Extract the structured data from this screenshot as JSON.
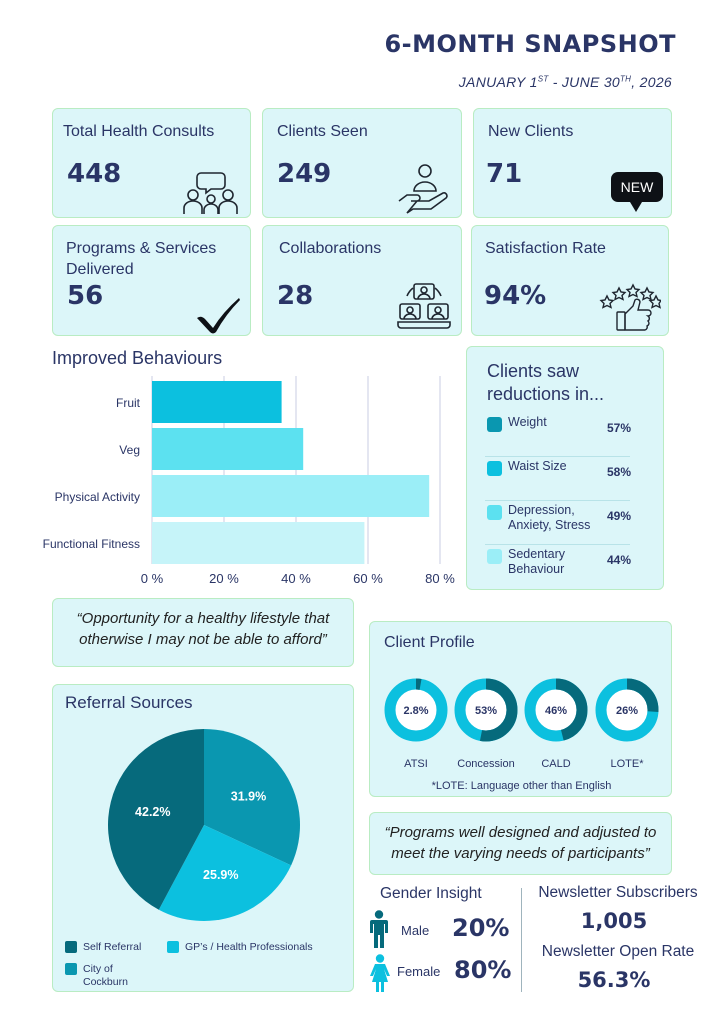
{
  "header": {
    "title": "6-MONTH SNAPSHOT",
    "date_a": "JANUARY 1",
    "date_a_sup": "ST",
    "date_b": " - JUNE 30",
    "date_b_sup": "TH",
    "date_c": ", 2026"
  },
  "stats": [
    {
      "label": "Total Health Consults",
      "value": "448",
      "icon": "consult-people-icon"
    },
    {
      "label": "Clients Seen",
      "value": "249",
      "icon": "hand-person-icon"
    },
    {
      "label": "New Clients",
      "value": "71",
      "icon": "new-badge-icon",
      "badge": "NEW"
    },
    {
      "label": "Programs & Services Delivered",
      "value": "56",
      "icon": "checkmark-icon"
    },
    {
      "label": "Collaborations",
      "value": "28",
      "icon": "video-call-icon"
    },
    {
      "label": "Satisfaction Rate",
      "value": "94%",
      "icon": "thumbs-up-stars-icon"
    }
  ],
  "improved": {
    "title": "Improved Behaviours"
  },
  "chart_data": {
    "type": "bar",
    "orientation": "horizontal",
    "title": "Improved Behaviours",
    "categories": [
      "Fruit",
      "Veg",
      "Physical Activity",
      "Functional Fitness"
    ],
    "values": [
      36,
      42,
      77,
      59
    ],
    "xlim": [
      0,
      80
    ],
    "xticks": [
      "0 %",
      "20 %",
      "40 %",
      "60 %",
      "80 %"
    ],
    "grid": true,
    "colors": [
      "#0cc0df",
      "#5ce1f0",
      "#9beef7",
      "#c6f4f9"
    ]
  },
  "reductions": {
    "title": "Clients saw reductions in...",
    "items": [
      {
        "label": "Weight",
        "value": "57%",
        "color": "#0a97b0"
      },
      {
        "label": "Waist Size",
        "value": "58%",
        "color": "#0cc0df"
      },
      {
        "label": "Depression, Anxiety, Stress",
        "value": "49%",
        "color": "#5ce1f0"
      },
      {
        "label": "Sedentary Behaviour",
        "value": "44%",
        "color": "#9beef7"
      }
    ]
  },
  "quotes": {
    "q1": "“Opportunity for a healthy lifestyle that otherwise I may not be able to afford”",
    "q2": "“Programs well designed and adjusted to meet the varying needs of participants”"
  },
  "referral": {
    "title": "Referral Sources",
    "slices": [
      {
        "label": "GP’s / Health Professionals",
        "value": 31.9,
        "text": "31.9%",
        "color": "#0a97b0"
      },
      {
        "label": "City of Cockburn",
        "value": 25.9,
        "text": "25.9%",
        "color": "#0cc0df"
      },
      {
        "label": "Self Referral",
        "value": 42.2,
        "text": "42.2%",
        "color": "#066a7c"
      }
    ],
    "legend": {
      "self": "Self Referral",
      "gp": "GP’s / Health Professionals",
      "city_a": "City of",
      "city_b": "Cockburn"
    }
  },
  "profile": {
    "title": "Client Profile",
    "donuts": [
      {
        "label": "ATSI",
        "value": 2.8,
        "text": "2.8%"
      },
      {
        "label": "Concession",
        "value": 53,
        "text": "53%"
      },
      {
        "label": "CALD",
        "value": 46,
        "text": "46%"
      },
      {
        "label": "LOTE*",
        "value": 26,
        "text": "26%"
      }
    ],
    "footnote": "*LOTE: Language other than English",
    "colors": {
      "fill": "#066a7c",
      "rest": "#0cc0df"
    }
  },
  "gender": {
    "title": "Gender Insight",
    "male_label": "Male",
    "male_value": "20%",
    "female_label": "Female",
    "female_value": "80%"
  },
  "newsletter": {
    "subs_label": "Newsletter Subscribers",
    "subs_value": "1,005",
    "open_label": "Newsletter Open Rate",
    "open_value": "56.3%"
  }
}
